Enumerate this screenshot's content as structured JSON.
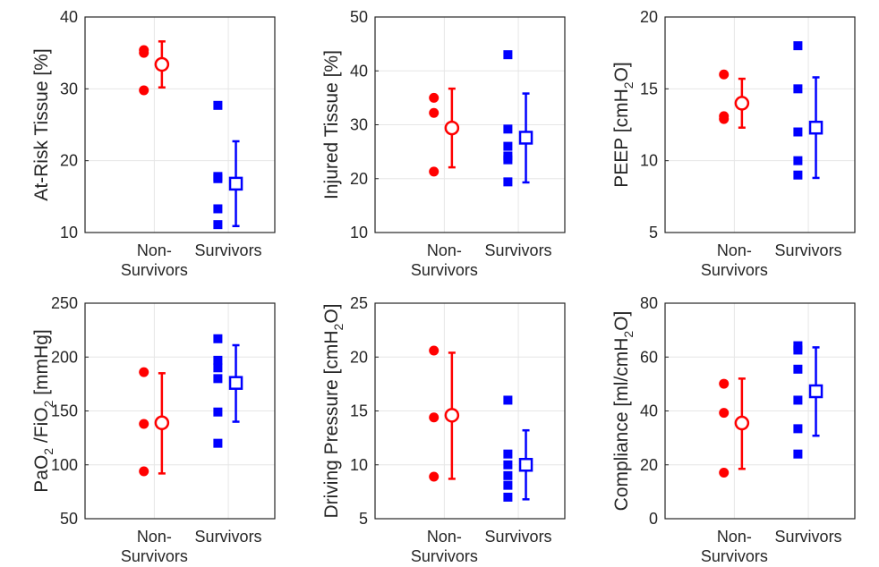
{
  "colors": {
    "non_survivors": "#ff0000",
    "survivors": "#0000ff",
    "axis": "#262626",
    "grid": "#e6e6e6"
  },
  "chart_data": [
    {
      "type": "scatter",
      "categories": [
        "Non-\nSurvivors",
        "Survivors"
      ],
      "ylabel": {
        "base": "At-Risk Tissue [%]"
      },
      "ylim": [
        10,
        40
      ],
      "yticks": [
        10,
        20,
        30,
        40
      ],
      "grid": true,
      "series": [
        {
          "points": [
            35.4,
            35.0,
            29.8
          ],
          "mean": 33.4,
          "err": [
            30.2,
            36.6
          ],
          "marker": "circle"
        },
        {
          "points": [
            27.7,
            17.8,
            17.5,
            13.3,
            11.1
          ],
          "mean": 16.8,
          "err": [
            10.9,
            22.7
          ],
          "marker": "square"
        }
      ]
    },
    {
      "type": "scatter",
      "categories": [
        "Non-\nSurvivors",
        "Survivors"
      ],
      "ylabel": {
        "base": "Injured Tissue [%]"
      },
      "ylim": [
        10,
        50
      ],
      "yticks": [
        10,
        20,
        30,
        40,
        50
      ],
      "grid": true,
      "series": [
        {
          "points": [
            35.0,
            32.2,
            21.3
          ],
          "mean": 29.4,
          "err": [
            22.1,
            36.7
          ],
          "marker": "circle"
        },
        {
          "points": [
            43.0,
            29.2,
            26.0,
            24.2,
            23.5,
            19.4
          ],
          "mean": 27.6,
          "err": [
            19.3,
            35.8
          ],
          "marker": "square"
        }
      ]
    },
    {
      "type": "scatter",
      "categories": [
        "Non-\nSurvivors",
        "Survivors"
      ],
      "ylabel": {
        "base": "PEEP [cmH",
        "sub": "2",
        "tail": "O]"
      },
      "ylim": [
        5,
        20
      ],
      "yticks": [
        5,
        10,
        15,
        20
      ],
      "grid": true,
      "series": [
        {
          "points": [
            16.0,
            13.1,
            12.9
          ],
          "mean": 14.0,
          "err": [
            12.3,
            15.7
          ],
          "marker": "circle"
        },
        {
          "points": [
            18.0,
            15.0,
            12.0,
            10.0,
            9.0
          ],
          "mean": 12.3,
          "err": [
            8.8,
            15.8
          ],
          "marker": "square"
        }
      ]
    },
    {
      "type": "scatter",
      "categories": [
        "Non-\nSurvivors",
        "Survivors"
      ],
      "ylabel": {
        "base": "PaO",
        "sub": "2",
        "tail": " /FiO",
        "sub2": "2",
        "tail2": " [mmHg]"
      },
      "ylim": [
        50,
        250
      ],
      "yticks": [
        50,
        100,
        150,
        200,
        250
      ],
      "grid": true,
      "series": [
        {
          "points": [
            186,
            138,
            94
          ],
          "mean": 139,
          "err": [
            92,
            185
          ],
          "marker": "circle"
        },
        {
          "points": [
            217,
            197,
            190,
            180,
            149,
            120
          ],
          "mean": 176,
          "err": [
            140,
            211
          ],
          "marker": "square"
        }
      ]
    },
    {
      "type": "scatter",
      "categories": [
        "Non-\nSurvivors",
        "Survivors"
      ],
      "ylabel": {
        "base": "Driving Pressure [cmH",
        "sub": "2",
        "tail": "O]"
      },
      "ylim": [
        5,
        25
      ],
      "yticks": [
        5,
        10,
        15,
        20,
        25
      ],
      "grid": true,
      "series": [
        {
          "points": [
            20.6,
            14.4,
            8.9
          ],
          "mean": 14.6,
          "err": [
            8.7,
            20.4
          ],
          "marker": "circle"
        },
        {
          "points": [
            16.0,
            11.0,
            10.0,
            9.0,
            8.1,
            7.0
          ],
          "mean": 10.0,
          "err": [
            6.8,
            13.2
          ],
          "marker": "square"
        }
      ]
    },
    {
      "type": "scatter",
      "categories": [
        "Non-\nSurvivors",
        "Survivors"
      ],
      "ylabel": {
        "base": "Compliance [ml/cmH",
        "sub": "2",
        "tail": "O]"
      },
      "ylim": [
        0,
        80
      ],
      "yticks": [
        0,
        20,
        40,
        60,
        80
      ],
      "grid": true,
      "series": [
        {
          "points": [
            50.1,
            39.3,
            17.1
          ],
          "mean": 35.5,
          "err": [
            18.5,
            52.0
          ],
          "marker": "circle"
        },
        {
          "points": [
            64.2,
            62.6,
            55.5,
            44.0,
            33.4,
            24.0
          ],
          "mean": 47.3,
          "err": [
            30.8,
            63.6
          ],
          "marker": "square"
        }
      ]
    }
  ]
}
